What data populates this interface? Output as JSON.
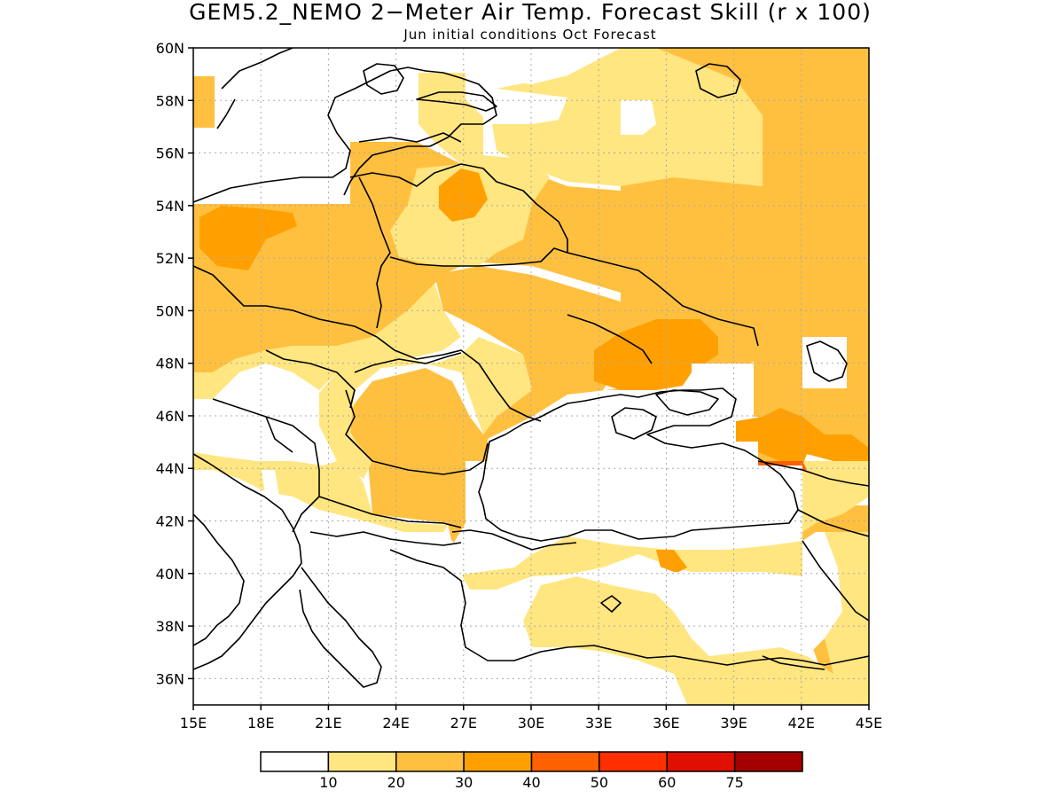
{
  "title": "GEM5.2_NEMO 2−Meter Air Temp. Forecast Skill (r x 100)",
  "subtitle": "Jun initial conditions  Oct Forecast",
  "map": {
    "lon_range": [
      15,
      45
    ],
    "lat_range": [
      35,
      60
    ],
    "x_tick_labels": [
      "15E",
      "18E",
      "21E",
      "24E",
      "27E",
      "30E",
      "33E",
      "36E",
      "39E",
      "42E",
      "45E"
    ],
    "y_tick_labels": [
      "36N",
      "38N",
      "40N",
      "42N",
      "44N",
      "46N",
      "48N",
      "50N",
      "52N",
      "54N",
      "56N",
      "58N",
      "60N"
    ],
    "grid": "dotted"
  },
  "colorbar": {
    "bins": [
      "#ffffff",
      "#ffe680",
      "#ffc040",
      "#ffa000",
      "#ff6000",
      "#ff3000",
      "#e01000",
      "#a50000"
    ],
    "labels": [
      "10",
      "20",
      "30",
      "40",
      "50",
      "60",
      "75"
    ]
  },
  "palette": {
    "class_10_20": "#ffe680",
    "class_20_30": "#ffc040",
    "class_30_40": "#ffa000",
    "class_40_50": "#ff6000"
  }
}
